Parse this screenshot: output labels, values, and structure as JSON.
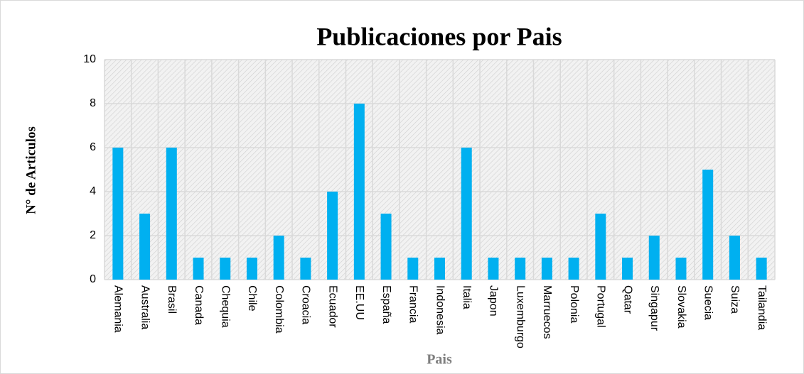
{
  "chart_data": {
    "type": "bar",
    "title": "Publicaciones por Pais",
    "x_label": "Pais",
    "y_label": "N° de Articulos",
    "categories": [
      "Alemania",
      "Australia",
      "Brasil",
      "Canada",
      "Chequia",
      "Chile",
      "Colombia",
      "Croacia",
      "Ecuador",
      "EE.UU",
      "España",
      "Francia",
      "Indonesia",
      "Italia",
      "Japon",
      "Luxemburgo",
      "Marruecos",
      "Polonia",
      "Portugal",
      "Qatar",
      "Singapur",
      "Slovakia",
      "Suecia",
      "Suiza",
      "Tailandia"
    ],
    "values": [
      6,
      3,
      6,
      1,
      1,
      1,
      2,
      1,
      4,
      8,
      3,
      1,
      1,
      6,
      1,
      1,
      1,
      1,
      3,
      1,
      2,
      1,
      5,
      2,
      1
    ],
    "color": "#00b0f0",
    "ylim": [
      0,
      10
    ],
    "yticks": [
      0,
      2,
      4,
      6,
      8,
      10
    ],
    "grid": true
  }
}
